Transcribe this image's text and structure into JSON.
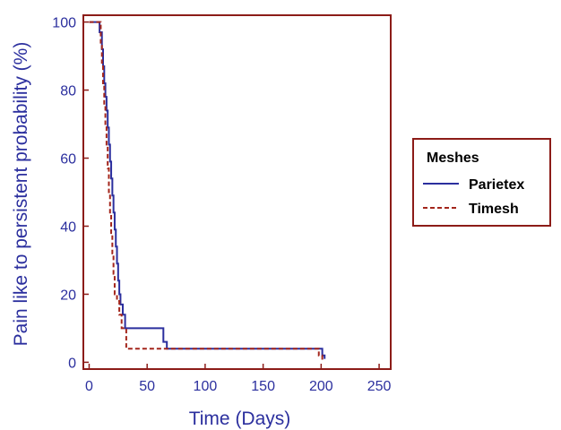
{
  "chart_data": {
    "type": "line",
    "title": "",
    "xlabel": "Time (Days)",
    "ylabel": "Pain like to persistent probability (%)",
    "xlim": [
      -5,
      260
    ],
    "ylim": [
      -2,
      102
    ],
    "xticks": [
      0,
      50,
      100,
      150,
      200,
      250
    ],
    "yticks": [
      0,
      20,
      40,
      60,
      80,
      100
    ],
    "grid": false,
    "legend": {
      "title": "Meshes",
      "placement": "right"
    },
    "series": [
      {
        "name": "Parietex",
        "color": "#2b2f9e",
        "dash": "solid",
        "x": [
          0,
          9,
          9,
          11,
          12,
          13,
          14,
          15,
          16,
          17,
          18,
          19,
          20,
          21,
          22,
          23,
          24,
          25,
          26,
          27,
          29,
          31,
          35,
          60,
          64,
          67,
          195,
          200,
          201,
          203
        ],
        "y": [
          100,
          100,
          97,
          92,
          87,
          82,
          78,
          74,
          69,
          64,
          59,
          54,
          49,
          44,
          39,
          34,
          29,
          24,
          20,
          17,
          14,
          10,
          10,
          10,
          6,
          4,
          4,
          4,
          2,
          1
        ]
      },
      {
        "name": "Timesh",
        "color": "#a3261c",
        "dash": "dashed",
        "x": [
          0,
          8,
          10,
          11,
          12,
          13,
          14,
          15,
          16,
          17,
          18,
          19,
          20,
          21,
          22,
          24,
          26,
          28,
          32,
          195,
          198,
          201
        ],
        "y": [
          100,
          100,
          93,
          88,
          82,
          76,
          70,
          64,
          57,
          50,
          44,
          38,
          32,
          26,
          20,
          18,
          14,
          10,
          4,
          4,
          2,
          0
        ]
      }
    ]
  },
  "colors": {
    "frame": "#8c1c18",
    "axis_text": "#2b2f9e",
    "legend_frame": "#8c1c18"
  }
}
